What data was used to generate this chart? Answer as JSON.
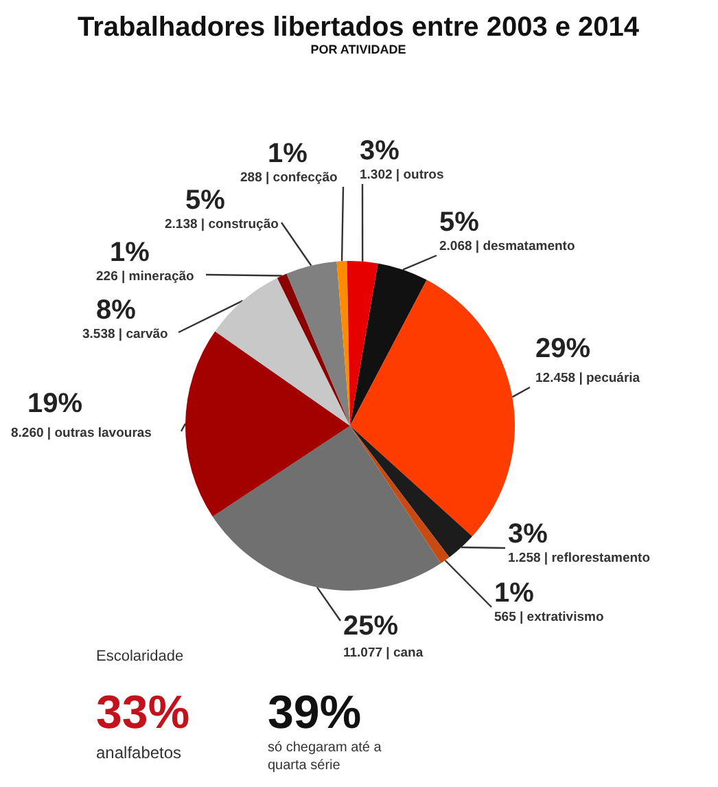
{
  "chart_data": {
    "type": "pie",
    "title": "Trabalhadores libertados entre 2003 e 2014",
    "subtitle": "POR ATIVIDADE",
    "categories": [
      "2.068 | desmatamento",
      "12.458 | pecuária",
      "1.258 | reflorestamento",
      "565 | extrativismo",
      "11.077 | cana",
      "8.260 | outras lavouras",
      "3.538 | carvão",
      "226 | mineração",
      "2.138 | construção",
      "288 | confecção",
      "1.302 | outros"
    ],
    "values": [
      5,
      29,
      3,
      1,
      25,
      19,
      8,
      1,
      5,
      1,
      3
    ],
    "value_labels": [
      "5%",
      "29%",
      "3%",
      "1%",
      "25%",
      "19%",
      "8%",
      "1%",
      "5%",
      "1%",
      "3%"
    ],
    "colors": [
      "#111111",
      "#ff3c00",
      "#1c1c1c",
      "#c84a10",
      "#707070",
      "#a30000",
      "#c8c8c8",
      "#8b0000",
      "#808080",
      "#ff8c00",
      "#e60000"
    ],
    "annotations": [
      "Escolaridade",
      "33%",
      "analfabetos",
      "39%",
      "só chegaram até a",
      "quarta série"
    ]
  }
}
